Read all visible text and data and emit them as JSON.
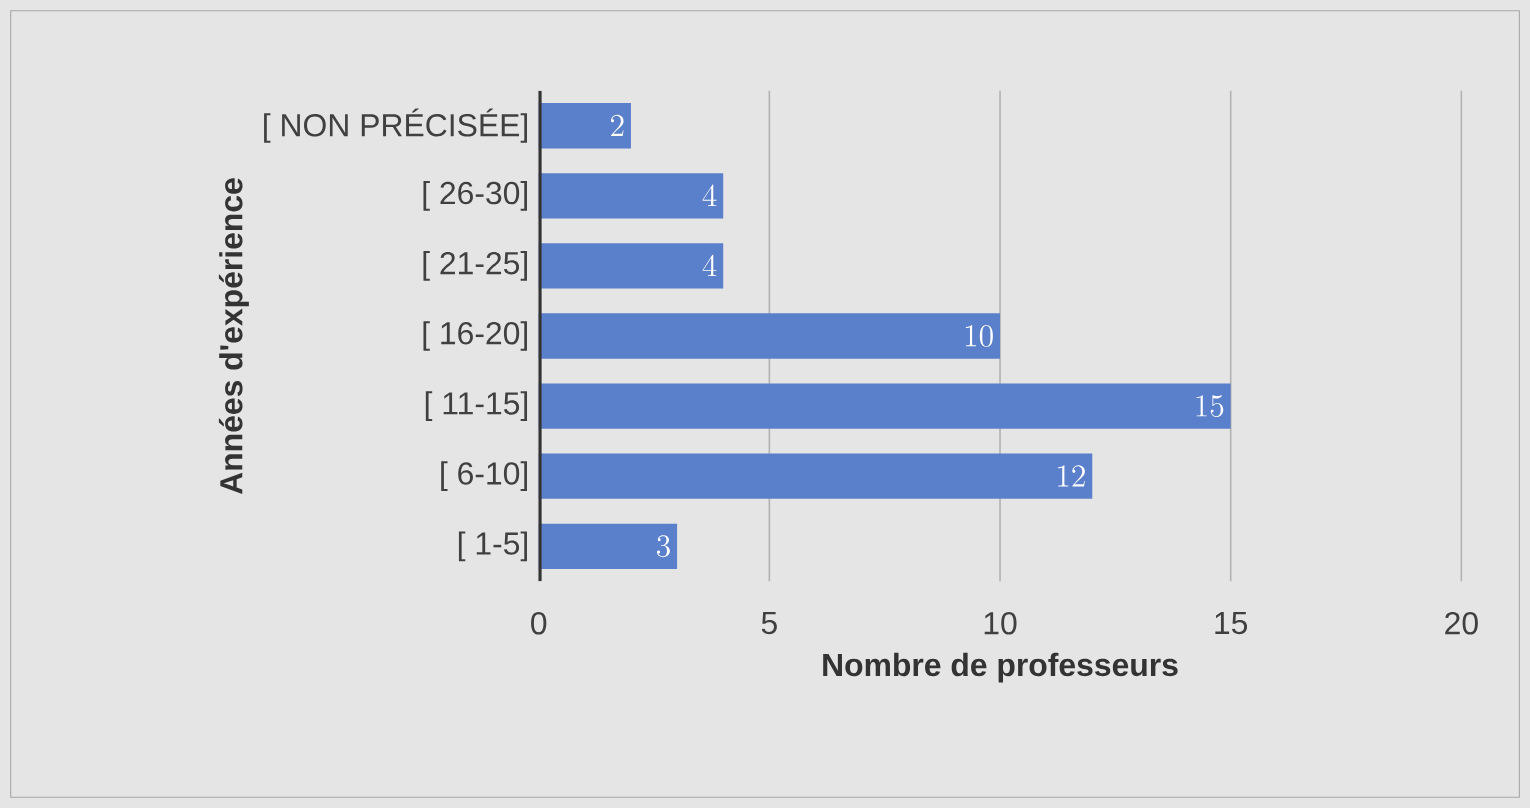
{
  "chart_data": {
    "type": "bar",
    "orientation": "horizontal",
    "xlabel": "Nombre de professeurs",
    "ylabel": "Années d'expérience",
    "categories": [
      "[ NON PRÉCISÉE]",
      "[ 26-30]",
      "[ 21-25]",
      "[ 16-20]",
      "[ 11-15]",
      "[ 6-10]",
      "[ 1-5]"
    ],
    "values": [
      2,
      4,
      4,
      10,
      15,
      12,
      3
    ],
    "color": "#5a7fcb",
    "xlim": [
      0,
      20
    ],
    "xticks": [
      0,
      5,
      10,
      15,
      20
    ],
    "grid": "x",
    "data_labels": true
  }
}
